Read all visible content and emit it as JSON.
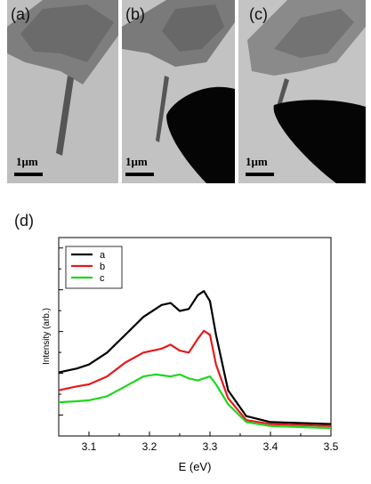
{
  "panels": [
    {
      "label": "(a)",
      "scale": "1μm"
    },
    {
      "label": "(b)",
      "scale": "1μm"
    },
    {
      "label": "(c)",
      "scale": "1μm"
    }
  ],
  "panel_d_label": "(d)",
  "chart_data": {
    "type": "line",
    "title": "",
    "xlabel": "E (eV)",
    "ylabel": "Intensity (arb.)",
    "xlim": [
      3.05,
      3.5
    ],
    "ylim": [
      0,
      1
    ],
    "x_ticks": [
      "3.1",
      "3.2",
      "3.3",
      "3.4",
      "3.5"
    ],
    "legend_position": "top-left",
    "series": [
      {
        "name": "a",
        "color": "#000000",
        "x": [
          3.05,
          3.08,
          3.1,
          3.13,
          3.16,
          3.19,
          3.22,
          3.235,
          3.25,
          3.265,
          3.28,
          3.29,
          3.3,
          3.31,
          3.33,
          3.36,
          3.4,
          3.45,
          3.5
        ],
        "y": [
          0.32,
          0.34,
          0.36,
          0.42,
          0.51,
          0.6,
          0.66,
          0.67,
          0.63,
          0.64,
          0.71,
          0.73,
          0.68,
          0.51,
          0.23,
          0.1,
          0.07,
          0.065,
          0.06
        ]
      },
      {
        "name": "b",
        "color": "#e41a1c",
        "x": [
          3.05,
          3.08,
          3.1,
          3.13,
          3.16,
          3.19,
          3.22,
          3.235,
          3.25,
          3.265,
          3.28,
          3.29,
          3.3,
          3.31,
          3.33,
          3.36,
          3.4,
          3.45,
          3.5
        ],
        "y": [
          0.23,
          0.25,
          0.26,
          0.3,
          0.37,
          0.42,
          0.44,
          0.46,
          0.43,
          0.42,
          0.49,
          0.53,
          0.51,
          0.36,
          0.19,
          0.08,
          0.06,
          0.055,
          0.05
        ]
      },
      {
        "name": "c",
        "color": "#1fd61f",
        "x": [
          3.05,
          3.08,
          3.1,
          3.13,
          3.16,
          3.19,
          3.21,
          3.235,
          3.25,
          3.265,
          3.28,
          3.3,
          3.31,
          3.33,
          3.36,
          3.4,
          3.45,
          3.5
        ],
        "y": [
          0.17,
          0.175,
          0.18,
          0.2,
          0.25,
          0.3,
          0.31,
          0.3,
          0.31,
          0.29,
          0.28,
          0.3,
          0.26,
          0.16,
          0.07,
          0.05,
          0.045,
          0.04
        ]
      }
    ]
  },
  "colors": {
    "accent_red": "#e41a1c",
    "accent_green": "#1fd61f",
    "micro_bg": "#bdbdbd"
  }
}
